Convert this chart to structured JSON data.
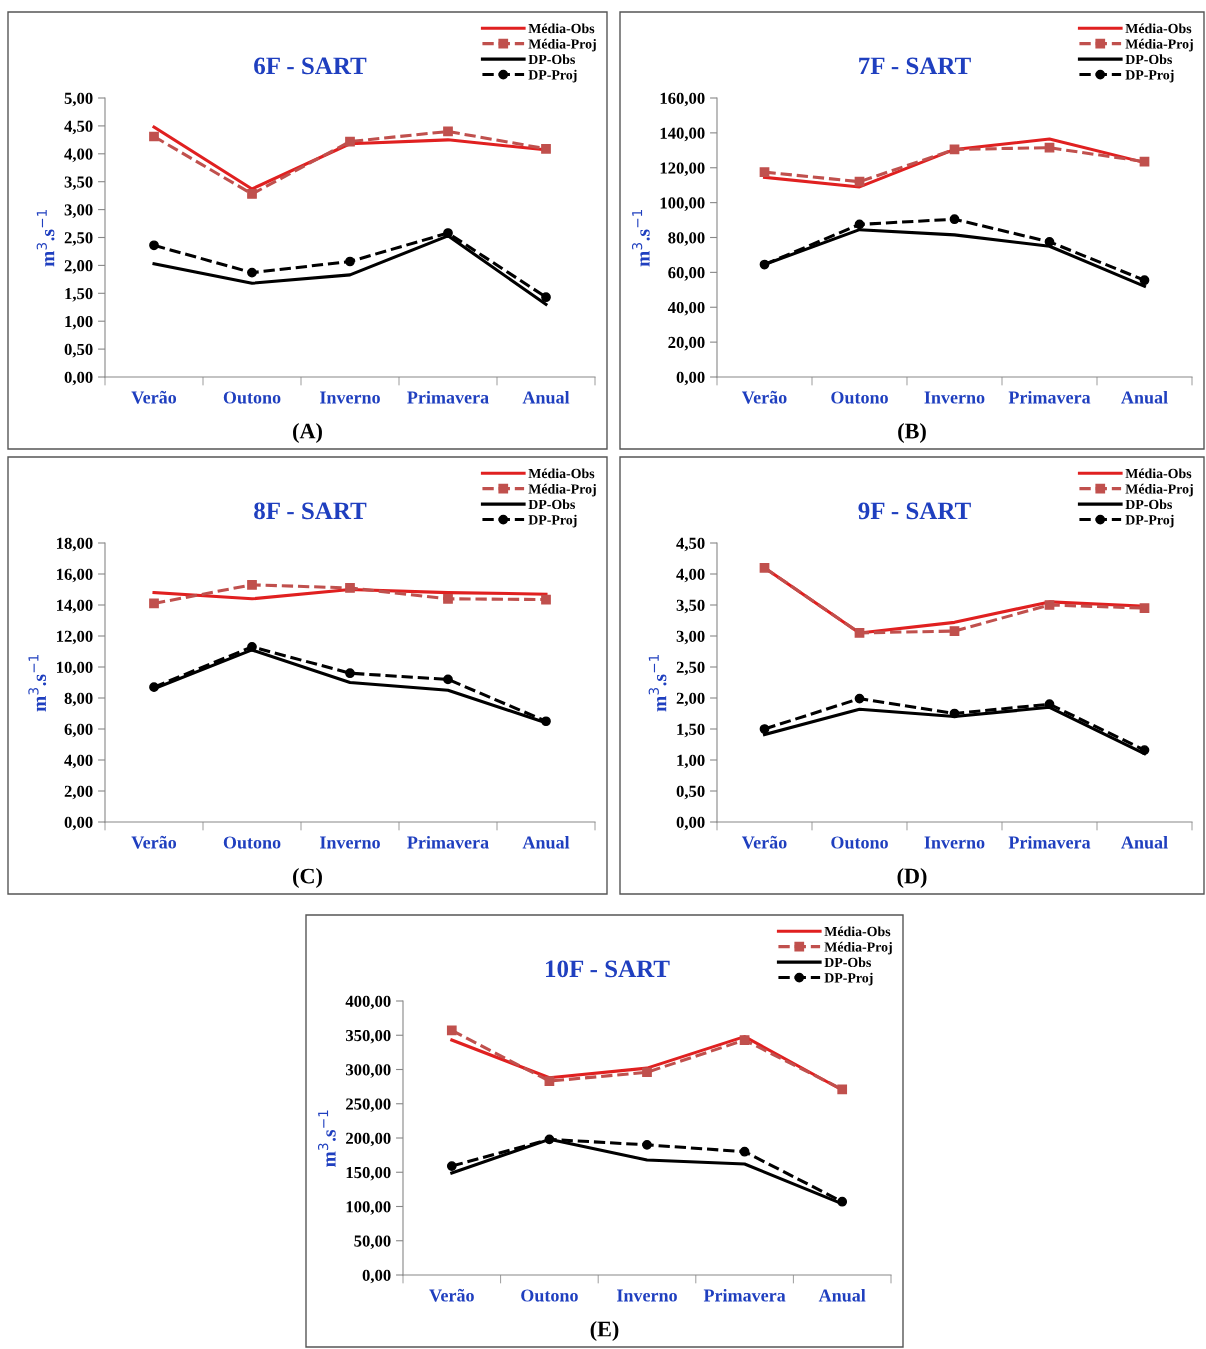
{
  "chart_data": [
    {
      "type": "line",
      "title": "6F - SART",
      "ylabel": "m$^{3}$.s$^{−1}$",
      "categories": [
        "Verão",
        "Outono",
        "Inverno",
        "Primavera",
        "Anual"
      ],
      "ylim": [
        0,
        5
      ],
      "yticks": [
        {
          "value": 0,
          "label": "0,00"
        },
        {
          "value": 0.5,
          "label": "0,50"
        },
        {
          "value": 1,
          "label": "1,00"
        },
        {
          "value": 1.5,
          "label": "1,50"
        },
        {
          "value": 2,
          "label": "2,00"
        },
        {
          "value": 2.5,
          "label": "2,50"
        },
        {
          "value": 3,
          "label": "3,00"
        },
        {
          "value": 3.5,
          "label": "3,50"
        },
        {
          "value": 4,
          "label": "4,00"
        },
        {
          "value": 4.5,
          "label": "4,50"
        },
        {
          "value": 5,
          "label": "5,00"
        }
      ],
      "grid": false,
      "legend": "top right",
      "annotations": [
        "(A)"
      ],
      "series": [
        {
          "name": "Média-Obs",
          "color": "#e02020",
          "line_style": "solid",
          "marker": "none",
          "values": [
            4.48,
            3.37,
            4.18,
            4.25,
            4.07
          ]
        },
        {
          "name": "Média-Proj",
          "color": "#c0504d",
          "line_style": "dashed",
          "marker": "square",
          "values": [
            4.31,
            3.28,
            4.22,
            4.4,
            4.09
          ]
        },
        {
          "name": "DP-Obs",
          "color": "#000000",
          "line_style": "solid",
          "marker": "none",
          "values": [
            2.03,
            1.68,
            1.83,
            2.53,
            1.3
          ]
        },
        {
          "name": "DP-Proj",
          "color": "#000000",
          "line_style": "dashed",
          "marker": "circle",
          "values": [
            2.36,
            1.87,
            2.07,
            2.58,
            1.43
          ]
        }
      ]
    },
    {
      "type": "line",
      "title": "7F - SART",
      "ylabel": "m$^{3}$.s$^{−1}$",
      "categories": [
        "Verão",
        "Outono",
        "Inverno",
        "Primavera",
        "Anual"
      ],
      "ylim": [
        0,
        160
      ],
      "yticks": [
        {
          "value": 0,
          "label": "0,00"
        },
        {
          "value": 20,
          "label": "20,00"
        },
        {
          "value": 40,
          "label": "40,00"
        },
        {
          "value": 60,
          "label": "60,00"
        },
        {
          "value": 80,
          "label": "80,00"
        },
        {
          "value": 100,
          "label": "100,00"
        },
        {
          "value": 120,
          "label": "120,00"
        },
        {
          "value": 140,
          "label": "140,00"
        },
        {
          "value": 160,
          "label": "160,00"
        }
      ],
      "grid": false,
      "legend": "top right",
      "annotations": [
        "(B)"
      ],
      "series": [
        {
          "name": "Média-Obs",
          "color": "#e02020",
          "line_style": "solid",
          "marker": "none",
          "values": [
            114.5,
            109,
            130.5,
            136.5,
            123
          ]
        },
        {
          "name": "Média-Proj",
          "color": "#c0504d",
          "line_style": "dashed",
          "marker": "square",
          "values": [
            117.5,
            112,
            130.5,
            131.5,
            123.5
          ]
        },
        {
          "name": "DP-Obs",
          "color": "#000000",
          "line_style": "solid",
          "marker": "none",
          "values": [
            64.5,
            84.5,
            81.5,
            75,
            52
          ]
        },
        {
          "name": "DP-Proj",
          "color": "#000000",
          "line_style": "dashed",
          "marker": "circle",
          "values": [
            64.5,
            87.5,
            90.5,
            77.5,
            55.5
          ]
        }
      ]
    },
    {
      "type": "line",
      "title": "8F - SART",
      "ylabel": "m$^{3}$.s$^{−1}$",
      "categories": [
        "Verão",
        "Outono",
        "Inverno",
        "Primavera",
        "Anual"
      ],
      "ylim": [
        0,
        18
      ],
      "yticks": [
        {
          "value": 0,
          "label": "0,00"
        },
        {
          "value": 2,
          "label": "2,00"
        },
        {
          "value": 4,
          "label": "4,00"
        },
        {
          "value": 6,
          "label": "6,00"
        },
        {
          "value": 8,
          "label": "8,00"
        },
        {
          "value": 10,
          "label": "10,00"
        },
        {
          "value": 12,
          "label": "12,00"
        },
        {
          "value": 14,
          "label": "14,00"
        },
        {
          "value": 16,
          "label": "16,00"
        },
        {
          "value": 18,
          "label": "18,00"
        }
      ],
      "grid": false,
      "legend": "top right",
      "annotations": [
        "(C)"
      ],
      "series": [
        {
          "name": "Média-Obs",
          "color": "#e02020",
          "line_style": "solid",
          "marker": "none",
          "values": [
            14.8,
            14.4,
            15.0,
            14.8,
            14.7
          ]
        },
        {
          "name": "Média-Proj",
          "color": "#c0504d",
          "line_style": "dashed",
          "marker": "square",
          "values": [
            14.1,
            15.3,
            15.1,
            14.4,
            14.35
          ]
        },
        {
          "name": "DP-Obs",
          "color": "#000000",
          "line_style": "solid",
          "marker": "none",
          "values": [
            8.6,
            11.1,
            9.0,
            8.5,
            6.4
          ]
        },
        {
          "name": "DP-Proj",
          "color": "#000000",
          "line_style": "dashed",
          "marker": "circle",
          "values": [
            8.7,
            11.3,
            9.6,
            9.2,
            6.5
          ]
        }
      ]
    },
    {
      "type": "line",
      "title": "9F - SART",
      "ylabel": "m$^{3}$.s$^{−1}$",
      "categories": [
        "Verão",
        "Outono",
        "Inverno",
        "Primavera",
        "Anual"
      ],
      "ylim": [
        0,
        4.5
      ],
      "yticks": [
        {
          "value": 0,
          "label": "0,00"
        },
        {
          "value": 0.5,
          "label": "0,50"
        },
        {
          "value": 1,
          "label": "1,00"
        },
        {
          "value": 1.5,
          "label": "1,50"
        },
        {
          "value": 2,
          "label": "2,00"
        },
        {
          "value": 2.5,
          "label": "2,50"
        },
        {
          "value": 3,
          "label": "3,00"
        },
        {
          "value": 3.5,
          "label": "3,50"
        },
        {
          "value": 4,
          "label": "4,00"
        },
        {
          "value": 4.5,
          "label": "4,50"
        }
      ],
      "grid": false,
      "legend": "top right",
      "annotations": [
        "(D)"
      ],
      "series": [
        {
          "name": "Média-Obs",
          "color": "#e02020",
          "line_style": "solid",
          "marker": "none",
          "values": [
            4.1,
            3.05,
            3.22,
            3.55,
            3.48
          ]
        },
        {
          "name": "Média-Proj",
          "color": "#c0504d",
          "line_style": "dashed",
          "marker": "square",
          "values": [
            4.1,
            3.05,
            3.08,
            3.5,
            3.45
          ]
        },
        {
          "name": "DP-Obs",
          "color": "#000000",
          "line_style": "solid",
          "marker": "none",
          "values": [
            1.41,
            1.82,
            1.7,
            1.85,
            1.1
          ]
        },
        {
          "name": "DP-Proj",
          "color": "#000000",
          "line_style": "dashed",
          "marker": "circle",
          "values": [
            1.5,
            1.99,
            1.75,
            1.9,
            1.16
          ]
        }
      ]
    },
    {
      "type": "line",
      "title": "10F - SART",
      "ylabel": "m$^{3}$.s$^{−1}$",
      "categories": [
        "Verão",
        "Outono",
        "Inverno",
        "Primavera",
        "Anual"
      ],
      "ylim": [
        0,
        400
      ],
      "yticks": [
        {
          "value": 0,
          "label": "0,00"
        },
        {
          "value": 50,
          "label": "50,00"
        },
        {
          "value": 100,
          "label": "100,00"
        },
        {
          "value": 150,
          "label": "150,00"
        },
        {
          "value": 200,
          "label": "200,00"
        },
        {
          "value": 250,
          "label": "250,00"
        },
        {
          "value": 300,
          "label": "300,00"
        },
        {
          "value": 350,
          "label": "350,00"
        },
        {
          "value": 400,
          "label": "400,00"
        }
      ],
      "grid": false,
      "legend": "top right",
      "annotations": [
        "(E)"
      ],
      "series": [
        {
          "name": "Média-Obs",
          "color": "#e02020",
          "line_style": "solid",
          "marker": "none",
          "values": [
            343,
            288,
            302,
            348,
            270
          ]
        },
        {
          "name": "Média-Proj",
          "color": "#c0504d",
          "line_style": "dashed",
          "marker": "square",
          "values": [
            357,
            283,
            296,
            343,
            271
          ]
        },
        {
          "name": "DP-Obs",
          "color": "#000000",
          "line_style": "solid",
          "marker": "none",
          "values": [
            149,
            198,
            168,
            162,
            104
          ]
        },
        {
          "name": "DP-Proj",
          "color": "#000000",
          "line_style": "dashed",
          "marker": "circle",
          "values": [
            159,
            198,
            190,
            180,
            107
          ]
        }
      ]
    }
  ]
}
